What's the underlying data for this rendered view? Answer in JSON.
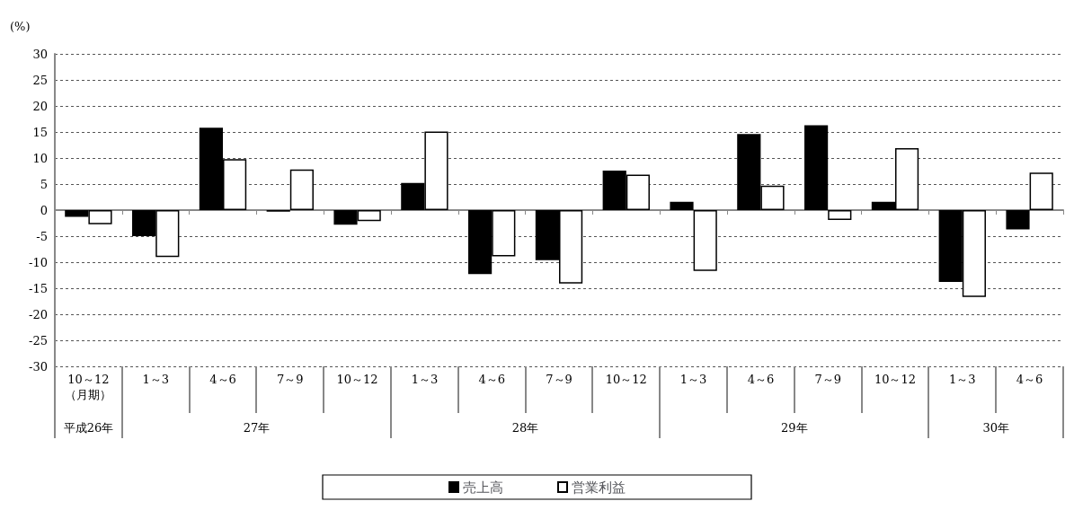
{
  "chart_data": {
    "type": "bar",
    "ylabel": "(%)",
    "categories": [
      "10～12\n（月期）",
      "1～3",
      "4～6",
      "7～9",
      "10～12",
      "1～3",
      "4～6",
      "7～9",
      "10～12",
      "1～3",
      "4～6",
      "7～9",
      "10～12",
      "1～3",
      "4～6"
    ],
    "series": [
      {
        "name": "売上高",
        "color": "#000000",
        "values": [
          -1.3,
          -5,
          15.8,
          -0.3,
          -2.8,
          5.2,
          -12.3,
          -9.6,
          7.6,
          1.6,
          14.6,
          16.3,
          1.6,
          -13.8,
          -3.7
        ]
      },
      {
        "name": "営業利益",
        "color": "#ffffff",
        "values": [
          -2.7,
          -9,
          9.8,
          7.8,
          -2.1,
          15.1,
          -8.9,
          -14.1,
          6.8,
          -11.7,
          4.7,
          -1.9,
          11.9,
          -16.7,
          7.2
        ]
      }
    ],
    "annotations": [
      "平成26年",
      "27年",
      "28年",
      "29年",
      "30年"
    ],
    "ylim": [
      -30,
      30
    ],
    "yticks": [
      -30,
      -25,
      -20,
      -15,
      -10,
      -5,
      0,
      5,
      10,
      15,
      20,
      25,
      30
    ],
    "grid": "y",
    "legend": "bottom"
  }
}
